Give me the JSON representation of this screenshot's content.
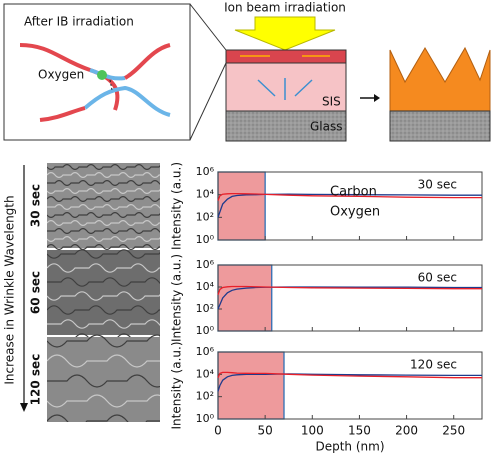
{
  "diagram": {
    "inset_title": "After IB irradiation",
    "inset_label": "Oxygen",
    "beam_label": "Ion beam irradiation",
    "layer_1": "SIS",
    "layer_2": "Glass"
  },
  "images": {
    "axis_label": "Increase in  Wrinkle Wavelength",
    "labels": [
      "30 sec",
      "60 sec",
      "120 sec"
    ]
  },
  "chart_data": [
    {
      "type": "line",
      "annotation": "30 sec",
      "ylabel": "Intensity (a.u.)",
      "log_y": true,
      "highlight": [
        0,
        50
      ],
      "show_legend": true,
      "show_xtick_labels": false,
      "x": [
        0,
        2,
        5,
        10,
        15,
        20,
        30,
        40,
        50,
        75,
        100,
        150,
        200,
        250,
        280
      ],
      "series": [
        {
          "name": "Carbon",
          "color": "#1f3b8c",
          "values": [
            100,
            300,
            1500,
            4000,
            7000,
            8500,
            9500,
            10000,
            10500,
            11000,
            10500,
            10000,
            9500,
            9000,
            9000
          ]
        },
        {
          "name": "Oxygen",
          "color": "#e8202a",
          "values": [
            3000,
            8000,
            11000,
            12000,
            12500,
            12500,
            12000,
            11500,
            10500,
            9000,
            8000,
            7000,
            6000,
            5500,
            5500
          ]
        }
      ],
      "xlim": [
        0,
        280
      ],
      "xticks": [
        0,
        50,
        100,
        150,
        200,
        250
      ],
      "ylim": [
        1,
        1000000
      ],
      "yticks": [
        {
          "value": 1,
          "label": "10⁰"
        },
        {
          "value": 100,
          "label": "10²"
        },
        {
          "value": 10000,
          "label": "10⁴"
        },
        {
          "value": 1000000,
          "label": "10⁶"
        }
      ]
    },
    {
      "type": "line",
      "annotation": "60 sec",
      "ylabel": "Intensity (a.u.)",
      "log_y": true,
      "highlight": [
        0,
        57
      ],
      "show_legend": false,
      "show_xtick_labels": false,
      "x": [
        0,
        2,
        5,
        10,
        15,
        20,
        30,
        40,
        50,
        75,
        100,
        150,
        200,
        250,
        280
      ],
      "series": [
        {
          "name": "Carbon",
          "color": "#1f3b8c",
          "values": [
            100,
            250,
            1000,
            3000,
            5000,
            6500,
            8000,
            9000,
            9500,
            10000,
            10000,
            9500,
            9500,
            9000,
            9000
          ]
        },
        {
          "name": "Oxygen",
          "color": "#e8202a",
          "values": [
            2000,
            6000,
            9000,
            10500,
            11000,
            11000,
            11000,
            10500,
            10000,
            9000,
            8500,
            8000,
            7500,
            7000,
            7000
          ]
        }
      ],
      "xlim": [
        0,
        280
      ],
      "xticks": [
        0,
        50,
        100,
        150,
        200,
        250
      ],
      "ylim": [
        1,
        1000000
      ],
      "yticks": [
        {
          "value": 1,
          "label": "10⁰"
        },
        {
          "value": 100,
          "label": "10²"
        },
        {
          "value": 10000,
          "label": "10⁴"
        },
        {
          "value": 1000000,
          "label": "10⁶"
        }
      ]
    },
    {
      "type": "line",
      "annotation": "120 sec",
      "ylabel": "Intensity (a.u.)",
      "log_y": true,
      "highlight": [
        0,
        70
      ],
      "show_legend": false,
      "show_xtick_labels": true,
      "xlabel": "Depth (nm)",
      "x": [
        0,
        2,
        5,
        10,
        15,
        20,
        30,
        40,
        50,
        75,
        100,
        150,
        200,
        250,
        280
      ],
      "series": [
        {
          "name": "Carbon",
          "color": "#1f3b8c",
          "values": [
            300,
            1000,
            3000,
            6000,
            8000,
            9000,
            10000,
            10000,
            10000,
            11000,
            10000,
            9000,
            8500,
            8000,
            8000
          ]
        },
        {
          "name": "Oxygen",
          "color": "#e8202a",
          "values": [
            5000,
            12000,
            15000,
            15000,
            14000,
            13000,
            12500,
            12000,
            12000,
            10000,
            8500,
            7000,
            6000,
            5000,
            5000
          ]
        }
      ],
      "xlim": [
        0,
        280
      ],
      "xticks": [
        0,
        50,
        100,
        150,
        200,
        250
      ],
      "ylim": [
        1,
        1000000
      ],
      "yticks": [
        {
          "value": 1,
          "label": "10⁰"
        },
        {
          "value": 100,
          "label": "10²"
        },
        {
          "value": 10000,
          "label": "10⁴"
        },
        {
          "value": 1000000,
          "label": "10⁶"
        }
      ]
    }
  ]
}
